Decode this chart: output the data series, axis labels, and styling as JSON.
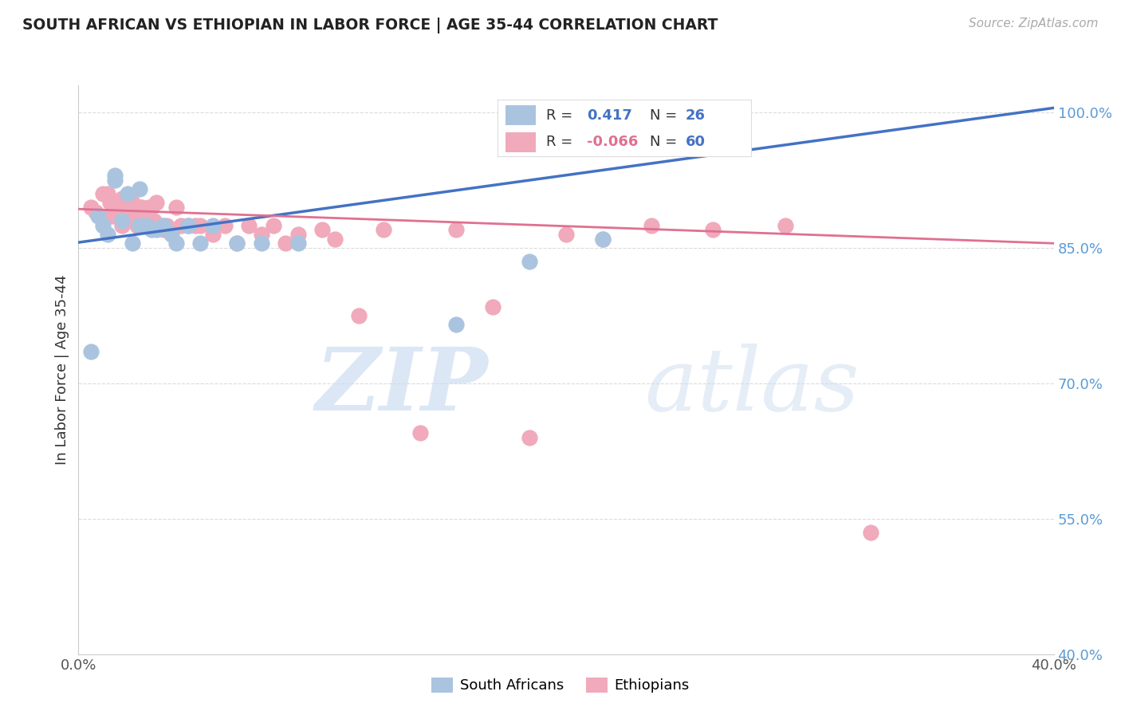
{
  "title": "SOUTH AFRICAN VS ETHIOPIAN IN LABOR FORCE | AGE 35-44 CORRELATION CHART",
  "source": "Source: ZipAtlas.com",
  "ylabel": "In Labor Force | Age 35-44",
  "xlim": [
    0.0,
    0.4
  ],
  "ylim": [
    0.4,
    1.03
  ],
  "xticks": [
    0.0,
    0.05,
    0.1,
    0.15,
    0.2,
    0.25,
    0.3,
    0.35,
    0.4
  ],
  "ytick_positions": [
    0.4,
    0.55,
    0.7,
    0.85,
    1.0
  ],
  "ytick_labels": [
    "40.0%",
    "55.0%",
    "70.0%",
    "85.0%",
    "100.0%"
  ],
  "grid_color": "#cccccc",
  "background_color": "#ffffff",
  "title_color": "#222222",
  "legend_R1": "0.417",
  "legend_N1": "26",
  "legend_R2": "-0.066",
  "legend_N2": "60",
  "blue_color": "#aac4e0",
  "pink_color": "#f0aabb",
  "blue_line_color": "#4472C4",
  "pink_line_color": "#e07090",
  "blue_legend_color": "#4472C4",
  "pink_legend_color": "#e07090",
  "n_color": "#4472C4",
  "legend_label_1": "South Africans",
  "legend_label_2": "Ethiopians",
  "south_african_x": [
    0.005,
    0.008,
    0.01,
    0.012,
    0.015,
    0.015,
    0.018,
    0.02,
    0.022,
    0.025,
    0.025,
    0.028,
    0.03,
    0.032,
    0.035,
    0.038,
    0.04,
    0.045,
    0.05,
    0.055,
    0.065,
    0.075,
    0.09,
    0.155,
    0.185,
    0.215
  ],
  "south_african_y": [
    0.735,
    0.885,
    0.875,
    0.865,
    0.93,
    0.925,
    0.88,
    0.91,
    0.855,
    0.915,
    0.875,
    0.875,
    0.87,
    0.87,
    0.875,
    0.865,
    0.855,
    0.875,
    0.855,
    0.875,
    0.855,
    0.855,
    0.855,
    0.765,
    0.835,
    0.86
  ],
  "ethiopian_x": [
    0.005,
    0.007,
    0.009,
    0.01,
    0.01,
    0.012,
    0.013,
    0.014,
    0.015,
    0.016,
    0.017,
    0.018,
    0.018,
    0.019,
    0.02,
    0.02,
    0.021,
    0.022,
    0.023,
    0.024,
    0.025,
    0.026,
    0.027,
    0.028,
    0.029,
    0.03,
    0.031,
    0.032,
    0.033,
    0.034,
    0.035,
    0.036,
    0.038,
    0.04,
    0.042,
    0.045,
    0.048,
    0.05,
    0.055,
    0.06,
    0.065,
    0.07,
    0.075,
    0.08,
    0.085,
    0.09,
    0.1,
    0.105,
    0.115,
    0.125,
    0.14,
    0.155,
    0.17,
    0.185,
    0.2,
    0.215,
    0.235,
    0.26,
    0.29,
    0.325
  ],
  "ethiopian_y": [
    0.895,
    0.89,
    0.885,
    0.91,
    0.88,
    0.91,
    0.9,
    0.885,
    0.9,
    0.895,
    0.885,
    0.905,
    0.875,
    0.895,
    0.9,
    0.88,
    0.895,
    0.9,
    0.885,
    0.875,
    0.895,
    0.895,
    0.885,
    0.875,
    0.895,
    0.895,
    0.88,
    0.9,
    0.875,
    0.875,
    0.87,
    0.875,
    0.87,
    0.895,
    0.875,
    0.875,
    0.875,
    0.875,
    0.865,
    0.875,
    0.855,
    0.875,
    0.865,
    0.875,
    0.855,
    0.865,
    0.87,
    0.86,
    0.775,
    0.87,
    0.645,
    0.87,
    0.785,
    0.64,
    0.865,
    0.86,
    0.875,
    0.87,
    0.875,
    0.535
  ],
  "blue_trendline_x": [
    0.0,
    0.4
  ],
  "blue_trendline_y": [
    0.856,
    1.005
  ],
  "pink_trendline_x": [
    0.0,
    0.4
  ],
  "pink_trendline_y": [
    0.893,
    0.855
  ]
}
